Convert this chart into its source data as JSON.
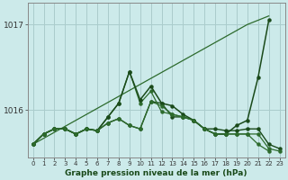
{
  "xlabel": "Graphe pression niveau de la mer (hPa)",
  "background_color": "#cceaea",
  "grid_color": "#aacccc",
  "line_color_dark": "#1a4a1a",
  "line_color_mid": "#2d6b2d",
  "x_ticks": [
    0,
    1,
    2,
    3,
    4,
    5,
    6,
    7,
    8,
    9,
    10,
    11,
    12,
    13,
    14,
    15,
    16,
    17,
    18,
    19,
    20,
    21,
    22,
    23
  ],
  "ylim": [
    1015.45,
    1017.25
  ],
  "yticks": [
    1016,
    1017
  ],
  "series1_diagonal": [
    1015.6,
    1015.67,
    1015.74,
    1015.81,
    1015.88,
    1015.95,
    1016.02,
    1016.09,
    1016.16,
    1016.23,
    1016.3,
    1016.37,
    1016.44,
    1016.51,
    1016.58,
    1016.65,
    1016.72,
    1016.79,
    1016.86,
    1016.93,
    1017.0,
    1017.05,
    1017.1,
    null
  ],
  "series2_flat": [
    1015.6,
    1015.72,
    1015.78,
    1015.78,
    1015.72,
    1015.78,
    1015.76,
    1015.85,
    1015.9,
    1015.82,
    1015.78,
    1016.1,
    1016.08,
    1015.92,
    1015.92,
    1015.88,
    1015.78,
    1015.78,
    1015.76,
    1015.76,
    1015.78,
    1015.78,
    1015.6,
    1015.55
  ],
  "series3_peaked": [
    1015.6,
    1015.72,
    1015.78,
    1015.78,
    1015.72,
    1015.78,
    1015.76,
    1015.92,
    1016.08,
    1016.45,
    1016.08,
    1016.22,
    1015.98,
    1015.95,
    1015.92,
    1015.88,
    1015.78,
    1015.72,
    1015.72,
    1015.72,
    1015.72,
    1015.72,
    1015.55,
    1015.52
  ],
  "series4_upper": [
    1015.6,
    1015.72,
    1015.78,
    1015.78,
    1015.72,
    1015.78,
    1015.76,
    1015.92,
    1016.08,
    1016.45,
    1016.12,
    1016.28,
    1016.08,
    1016.05,
    1015.95,
    1015.88,
    1015.78,
    1015.72,
    1015.72,
    1015.82,
    1015.88,
    1016.38,
    1017.05,
    null
  ],
  "series5_end": [
    1015.6,
    1015.72,
    1015.78,
    1015.78,
    1015.72,
    1015.78,
    1015.76,
    1015.85,
    1015.9,
    1015.82,
    1015.78,
    1016.1,
    1016.05,
    1015.95,
    1015.92,
    1015.88,
    1015.78,
    1015.72,
    1015.72,
    1015.72,
    1015.72,
    1015.6,
    1015.52,
    null
  ]
}
